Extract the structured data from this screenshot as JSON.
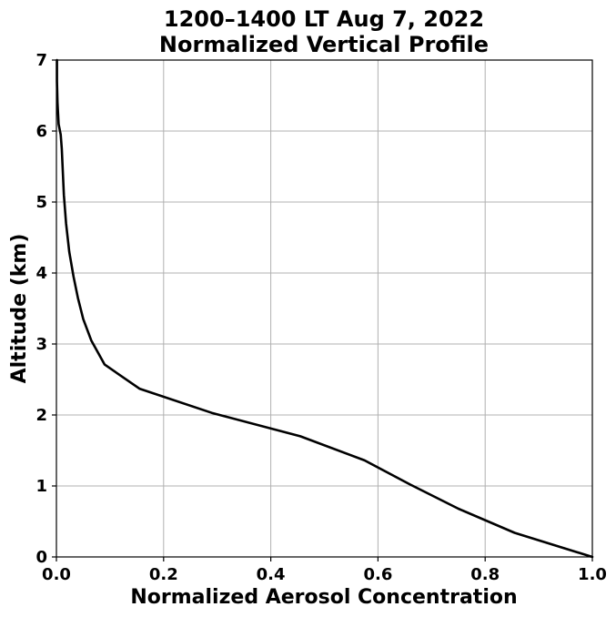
{
  "chart_data": {
    "type": "line",
    "title": "1200–1400 LT Aug 7, 2022",
    "subtitle": "Normalized Vertical Profile",
    "xlabel": "Normalized Aerosol Concentration",
    "ylabel": "Altitude (km)",
    "xlim": [
      0,
      1
    ],
    "ylim": [
      0,
      7
    ],
    "xticks": [
      0,
      0.2,
      0.4,
      0.6,
      0.8,
      1
    ],
    "xtick_labels": [
      "0.0",
      "0.2",
      "0.4",
      "0.6",
      "0.8",
      "1.0"
    ],
    "yticks": [
      0,
      1,
      2,
      3,
      4,
      5,
      6,
      7
    ],
    "ytick_labels": [
      "0",
      "1",
      "2",
      "3",
      "4",
      "5",
      "6",
      "7"
    ],
    "grid": true,
    "line_color": "#000000",
    "series": [
      {
        "x": [
          1.0,
          0.855,
          0.75,
          0.66,
          0.575,
          0.455,
          0.29,
          0.155,
          0.09,
          0.065,
          0.05,
          0.04,
          0.032,
          0.024,
          0.018,
          0.014,
          0.01,
          0.008,
          0.004,
          0.002,
          0.001,
          0.001
        ],
        "y": [
          0.0,
          0.34,
          0.68,
          1.02,
          1.36,
          1.7,
          2.03,
          2.37,
          2.71,
          3.05,
          3.35,
          3.65,
          3.95,
          4.3,
          4.7,
          5.1,
          5.75,
          5.95,
          6.1,
          6.4,
          6.7,
          7.0
        ]
      }
    ]
  }
}
